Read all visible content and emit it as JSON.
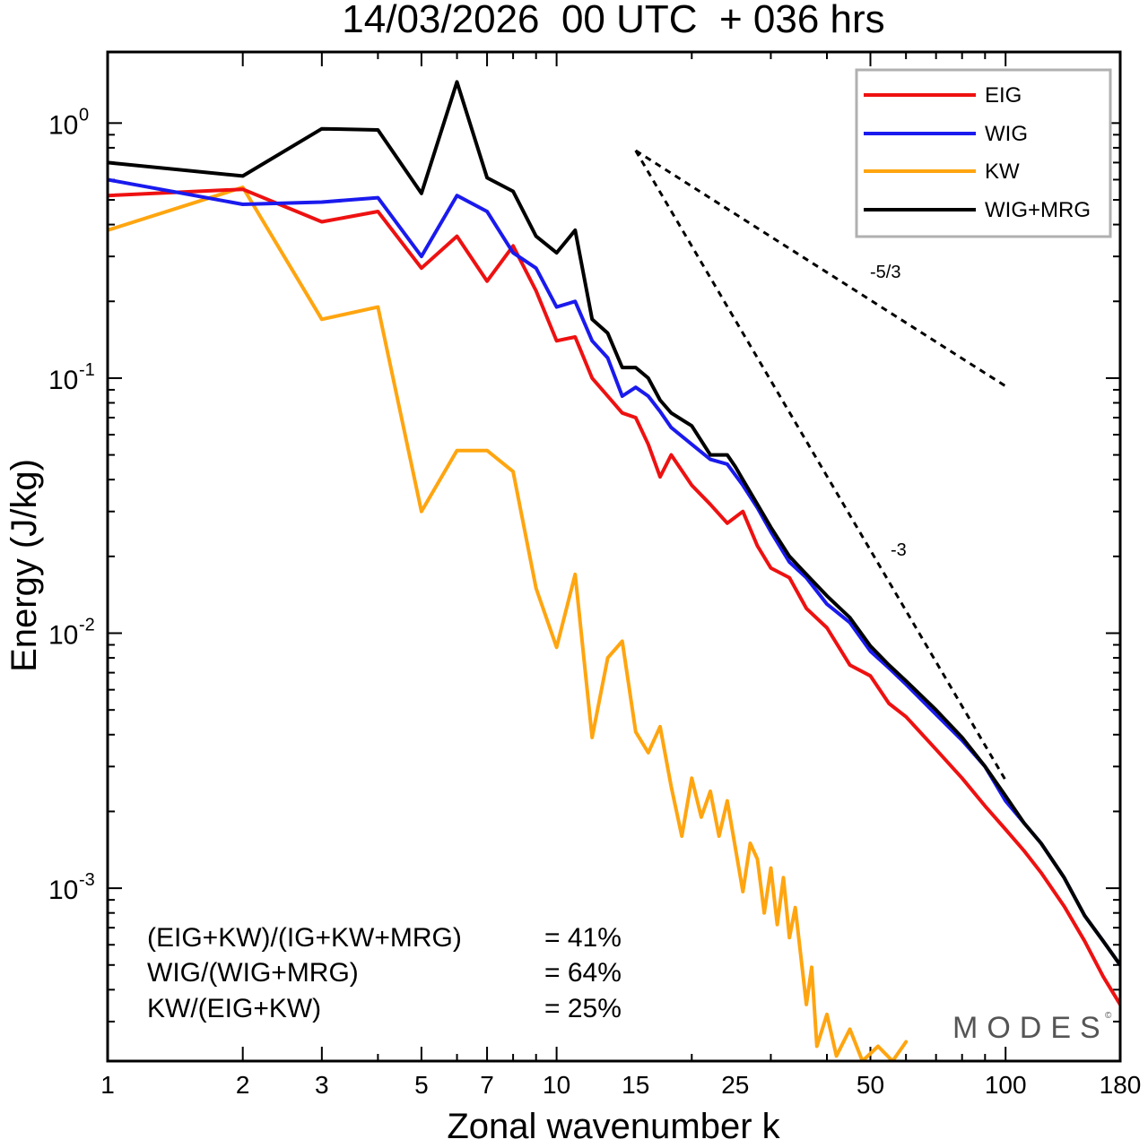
{
  "chart_data": {
    "type": "line",
    "title": "14/03/2026  00 UTC  + 036 hrs",
    "xlabel": "Zonal wavenumber k",
    "ylabel": "Energy (J/kg)",
    "xscale": "log",
    "yscale": "log",
    "xlim": [
      1,
      180
    ],
    "ylim": [
      0.00021,
      1.9
    ],
    "x_ticks": [
      1,
      2,
      3,
      5,
      7,
      10,
      15,
      25,
      50,
      100,
      180
    ],
    "x_tick_labels": [
      "1",
      "2",
      "3",
      "5",
      "7",
      "10",
      "15",
      "25",
      "50",
      "100",
      "180"
    ],
    "y_major_ticks": [
      {
        "value": 1,
        "base": "10",
        "exp": "0"
      },
      {
        "value": 0.1,
        "base": "10",
        "exp": "-1"
      },
      {
        "value": 0.01,
        "base": "10",
        "exp": "-2"
      },
      {
        "value": 0.001,
        "base": "10",
        "exp": "-3"
      }
    ],
    "legend_position": "top-right",
    "series": [
      {
        "name": "EIG",
        "color": "#ee1111",
        "points": [
          [
            1,
            0.52
          ],
          [
            2,
            0.55
          ],
          [
            3,
            0.41
          ],
          [
            4,
            0.45
          ],
          [
            5,
            0.27
          ],
          [
            6,
            0.36
          ],
          [
            7,
            0.24
          ],
          [
            8,
            0.33
          ],
          [
            9,
            0.22
          ],
          [
            10,
            0.14
          ],
          [
            11,
            0.145
          ],
          [
            12,
            0.1
          ],
          [
            13,
            0.085
          ],
          [
            14,
            0.073
          ],
          [
            15,
            0.07
          ],
          [
            16,
            0.055
          ],
          [
            17,
            0.041
          ],
          [
            18,
            0.05
          ],
          [
            20,
            0.038
          ],
          [
            22,
            0.032
          ],
          [
            24,
            0.027
          ],
          [
            26,
            0.03
          ],
          [
            28,
            0.022
          ],
          [
            30,
            0.018
          ],
          [
            33,
            0.0165
          ],
          [
            36,
            0.0125
          ],
          [
            40,
            0.0105
          ],
          [
            45,
            0.0075
          ],
          [
            50,
            0.0068
          ],
          [
            55,
            0.0053
          ],
          [
            60,
            0.0047
          ],
          [
            70,
            0.0035
          ],
          [
            80,
            0.0027
          ],
          [
            90,
            0.0021
          ],
          [
            100,
            0.0017
          ],
          [
            110,
            0.0014
          ],
          [
            120,
            0.00115
          ],
          [
            135,
            0.00085
          ],
          [
            150,
            0.00062
          ],
          [
            165,
            0.00045
          ],
          [
            180,
            0.00035
          ]
        ]
      },
      {
        "name": "WIG",
        "color": "#1a1aee",
        "points": [
          [
            1,
            0.6
          ],
          [
            2,
            0.48
          ],
          [
            3,
            0.49
          ],
          [
            4,
            0.51
          ],
          [
            5,
            0.3
          ],
          [
            6,
            0.52
          ],
          [
            7,
            0.45
          ],
          [
            8,
            0.31
          ],
          [
            9,
            0.27
          ],
          [
            10,
            0.19
          ],
          [
            11,
            0.2
          ],
          [
            12,
            0.14
          ],
          [
            13,
            0.12
          ],
          [
            14,
            0.085
          ],
          [
            15,
            0.092
          ],
          [
            16,
            0.085
          ],
          [
            17,
            0.074
          ],
          [
            18,
            0.064
          ],
          [
            20,
            0.055
          ],
          [
            22,
            0.048
          ],
          [
            24,
            0.046
          ],
          [
            26,
            0.038
          ],
          [
            28,
            0.031
          ],
          [
            30,
            0.025
          ],
          [
            33,
            0.019
          ],
          [
            36,
            0.0165
          ],
          [
            40,
            0.013
          ],
          [
            45,
            0.011
          ],
          [
            50,
            0.0085
          ],
          [
            55,
            0.0073
          ],
          [
            60,
            0.0063
          ],
          [
            70,
            0.0048
          ],
          [
            80,
            0.0038
          ],
          [
            90,
            0.003
          ],
          [
            100,
            0.0022
          ],
          [
            110,
            0.0018
          ],
          [
            120,
            0.0015
          ],
          [
            135,
            0.0011
          ],
          [
            150,
            0.00078
          ],
          [
            165,
            0.00062
          ],
          [
            180,
            0.0005
          ]
        ]
      },
      {
        "name": "KW",
        "color": "#ffa510",
        "points": [
          [
            1,
            0.38
          ],
          [
            2,
            0.56
          ],
          [
            3,
            0.17
          ],
          [
            4,
            0.19
          ],
          [
            5,
            0.03
          ],
          [
            6,
            0.052
          ],
          [
            7,
            0.052
          ],
          [
            8,
            0.043
          ],
          [
            9,
            0.015
          ],
          [
            10,
            0.0088
          ],
          [
            11,
            0.017
          ],
          [
            12,
            0.0039
          ],
          [
            13,
            0.008
          ],
          [
            14,
            0.0093
          ],
          [
            15,
            0.0041
          ],
          [
            16,
            0.0034
          ],
          [
            17,
            0.0043
          ],
          [
            18,
            0.0025
          ],
          [
            19,
            0.0016
          ],
          [
            20,
            0.0027
          ],
          [
            21,
            0.0019
          ],
          [
            22,
            0.0024
          ],
          [
            23,
            0.0016
          ],
          [
            24,
            0.0022
          ],
          [
            26,
            0.00097
          ],
          [
            27,
            0.0015
          ],
          [
            28,
            0.0013
          ],
          [
            29,
            0.0008
          ],
          [
            30,
            0.0012
          ],
          [
            31,
            0.00072
          ],
          [
            32,
            0.0011
          ],
          [
            33,
            0.00064
          ],
          [
            34,
            0.00084
          ],
          [
            36,
            0.00035
          ],
          [
            37,
            0.00049
          ],
          [
            38,
            0.00024
          ],
          [
            40,
            0.00032
          ],
          [
            42,
            0.00022
          ],
          [
            45,
            0.00028
          ],
          [
            48,
            0.00021
          ],
          [
            52,
            0.00024
          ],
          [
            56,
            0.00021
          ],
          [
            60,
            0.00025
          ]
        ]
      },
      {
        "name": "WIG+MRG",
        "color": "#000000",
        "points": [
          [
            1,
            0.7
          ],
          [
            2,
            0.62
          ],
          [
            3,
            0.95
          ],
          [
            4,
            0.94
          ],
          [
            5,
            0.53
          ],
          [
            6,
            1.45
          ],
          [
            7,
            0.61
          ],
          [
            8,
            0.54
          ],
          [
            9,
            0.36
          ],
          [
            10,
            0.31
          ],
          [
            11,
            0.38
          ],
          [
            12,
            0.17
          ],
          [
            13,
            0.15
          ],
          [
            14,
            0.11
          ],
          [
            15,
            0.11
          ],
          [
            16,
            0.1
          ],
          [
            17,
            0.082
          ],
          [
            18,
            0.073
          ],
          [
            20,
            0.065
          ],
          [
            22,
            0.05
          ],
          [
            24,
            0.05
          ],
          [
            25,
            0.045
          ],
          [
            26,
            0.04
          ],
          [
            28,
            0.032
          ],
          [
            30,
            0.026
          ],
          [
            33,
            0.02
          ],
          [
            36,
            0.017
          ],
          [
            40,
            0.014
          ],
          [
            45,
            0.0115
          ],
          [
            50,
            0.0089
          ],
          [
            55,
            0.0075
          ],
          [
            60,
            0.0065
          ],
          [
            70,
            0.005
          ],
          [
            80,
            0.0039
          ],
          [
            90,
            0.003
          ],
          [
            100,
            0.0023
          ],
          [
            110,
            0.0018
          ],
          [
            120,
            0.0015
          ],
          [
            135,
            0.0011
          ],
          [
            150,
            0.00078
          ],
          [
            165,
            0.00062
          ],
          [
            180,
            0.0005
          ]
        ]
      }
    ],
    "reference_lines": [
      {
        "label": "-5/3",
        "slope": -1.6667,
        "from": [
          15,
          0.78
        ],
        "to": [
          100,
          0.093
        ]
      },
      {
        "label": "-3",
        "slope": -3,
        "from": [
          15,
          0.78
        ],
        "to": [
          100,
          0.00265
        ]
      }
    ],
    "annotations": [
      {
        "text": "(EIG+KW)/(IG+KW+MRG)",
        "value": "= 41%"
      },
      {
        "text": "WIG/(WIG+MRG)",
        "value": "= 64%"
      },
      {
        "text": "KW/(EIG+KW)",
        "value": "= 25%"
      }
    ],
    "watermark": "MODES",
    "watermark_mark": "©"
  }
}
